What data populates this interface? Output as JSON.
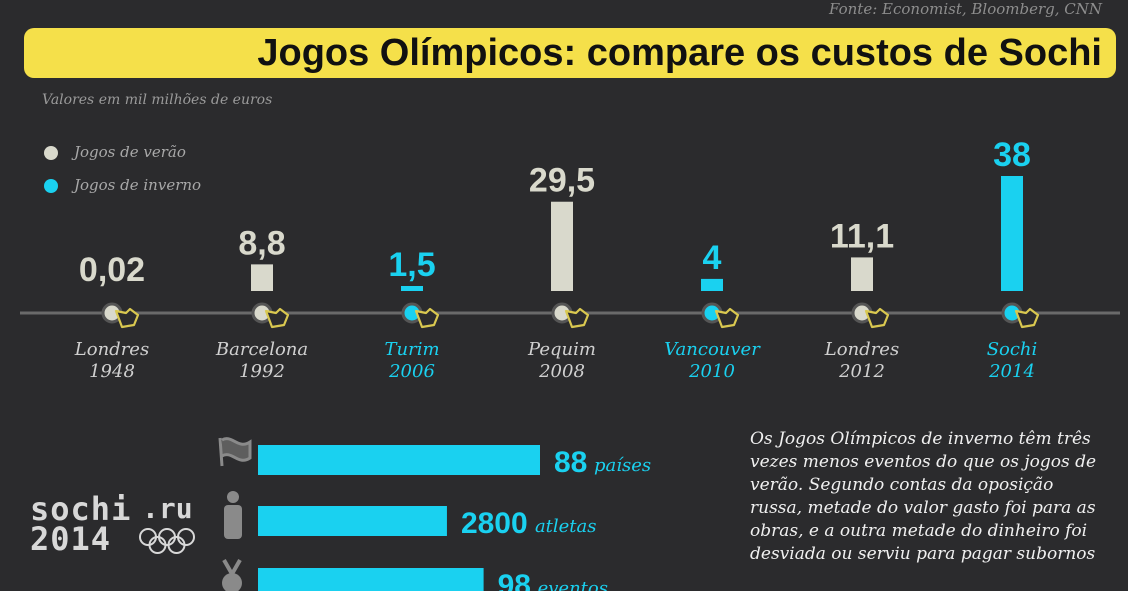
{
  "source": "Fonte: Economist, Bloomberg, CNN",
  "title": "Jogos Olímpicos: compare os custos de Sochi",
  "subtitle": "Valores em mil milhões de euros",
  "legend": [
    {
      "label": "Jogos de verão",
      "color": "#d9d9cc"
    },
    {
      "label": "Jogos de inverno",
      "color": "#1ad1f0"
    }
  ],
  "colors": {
    "summer": "#d9d9cc",
    "winter": "#1ad1f0",
    "title_bg": "#f5e04a",
    "background": "#2b2b2d"
  },
  "chart_data": [
    {
      "type": "bar",
      "categories": [
        "Londres 1948",
        "Barcelona 1992",
        "Turim 2006",
        "Pequim 2008",
        "Vancouver 2010",
        "Londres 2012",
        "Sochi 2014"
      ],
      "cities": [
        "Londres",
        "Barcelona",
        "Turim",
        "Pequim",
        "Vancouver",
        "Londres",
        "Sochi"
      ],
      "years": [
        "1948",
        "1992",
        "2006",
        "2008",
        "2010",
        "2012",
        "2014"
      ],
      "values": [
        0.02,
        8.8,
        1.5,
        29.5,
        4,
        11.1,
        38
      ],
      "value_labels": [
        "0,02",
        "8,8",
        "1,5",
        "29,5",
        "4",
        "11,1",
        "38"
      ],
      "season": [
        "summer",
        "summer",
        "winter",
        "summer",
        "winter",
        "summer",
        "winter"
      ],
      "title": "Jogos Olímpicos: compare os custos de Sochi",
      "ylabel": "Valores em mil milhões de euros",
      "ylim": [
        0,
        38
      ]
    },
    {
      "type": "bar",
      "categories": [
        "países",
        "atletas",
        "eventos"
      ],
      "values": [
        88,
        2800,
        98
      ],
      "value_labels": [
        "88",
        "2800",
        "98"
      ],
      "icons": [
        "flag-icon",
        "athlete-icon",
        "medal-icon"
      ],
      "bar_fractions": [
        1.0,
        0.67,
        0.8
      ]
    }
  ],
  "description": "Os Jogos Olímpicos de inverno têm três vezes menos eventos do que os jogos de verão. Segundo contas da oposição russa, metade do valor gasto foi para as obras, e a outra metade do dinheiro foi desviada ou serviu para pagar subornos",
  "logo": {
    "line1": "sochi",
    "domain": ".ru",
    "line2": "2014"
  }
}
